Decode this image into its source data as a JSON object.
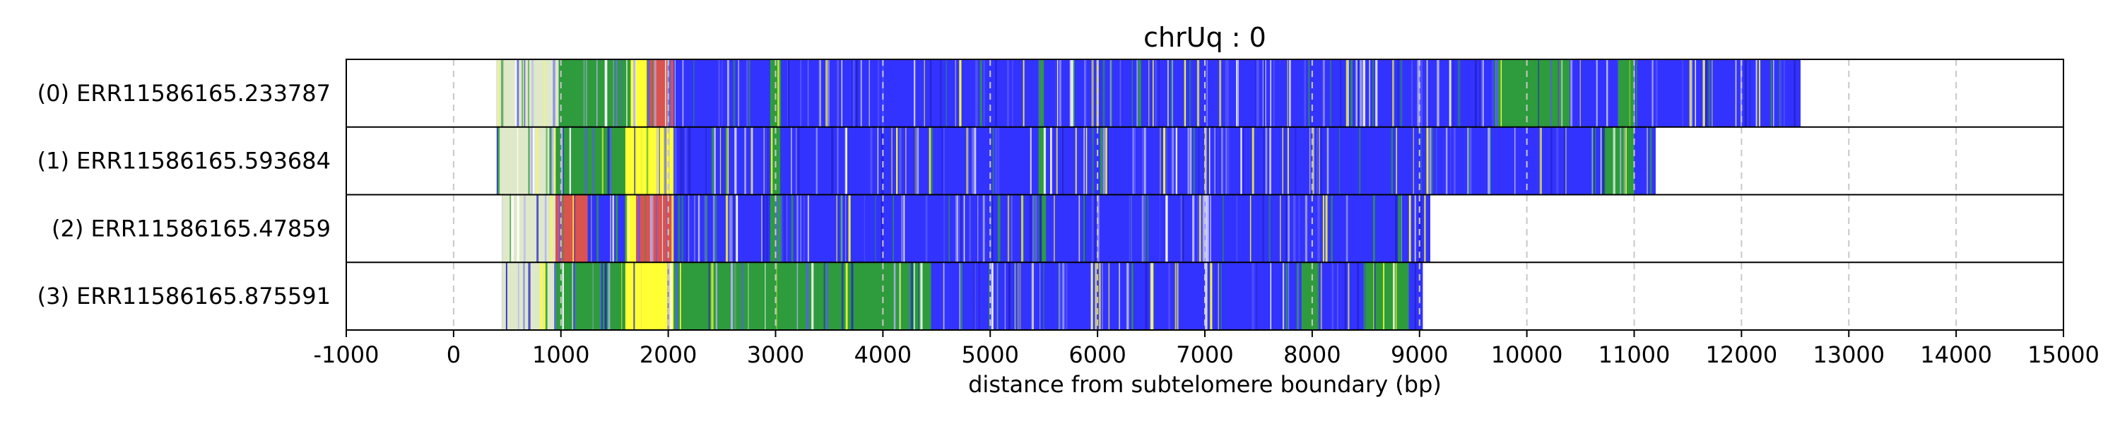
{
  "chart_data": {
    "type": "bar",
    "title": "chrUq : 0",
    "xlabel": "distance from subtelomere boundary (bp)",
    "ylabel": "",
    "xlim": [
      -1000,
      15000
    ],
    "xticks": [
      -1000,
      0,
      1000,
      2000,
      3000,
      4000,
      5000,
      6000,
      7000,
      8000,
      9000,
      10000,
      11000,
      12000,
      13000,
      14000,
      15000
    ],
    "xtick_labels": [
      "-1000",
      "0",
      "1000",
      "2000",
      "3000",
      "4000",
      "5000",
      "6000",
      "7000",
      "8000",
      "9000",
      "10000",
      "11000",
      "12000",
      "13000",
      "14000",
      "15000"
    ],
    "grid": "vertical dashed",
    "colors": {
      "blue": "#3333ff",
      "green": "#2e9b3c",
      "yellow": "#ffff33",
      "red": "#d9534f",
      "lavender": "#b3b3f5",
      "pale": "#dfe8c8",
      "grid": "#c8c8c8"
    },
    "reads": [
      {
        "label": "(0) ERR11586165.233787",
        "start": 400,
        "end": 12550,
        "bands": [
          {
            "from": 400,
            "to": 980,
            "color": "pale"
          },
          {
            "from": 980,
            "to": 1650,
            "color": "green"
          },
          {
            "from": 1650,
            "to": 1800,
            "color": "yellow"
          },
          {
            "from": 1800,
            "to": 2050,
            "color": "red"
          },
          {
            "from": 2050,
            "to": 9700,
            "color": "blue"
          },
          {
            "from": 2950,
            "to": 3050,
            "color": "green"
          },
          {
            "from": 5450,
            "to": 5500,
            "color": "green"
          },
          {
            "from": 9700,
            "to": 10400,
            "color": "green"
          },
          {
            "from": 10400,
            "to": 12550,
            "color": "blue"
          },
          {
            "from": 10850,
            "to": 11000,
            "color": "green"
          }
        ]
      },
      {
        "label": "(1) ERR11586165.593684",
        "start": 400,
        "end": 11200,
        "bands": [
          {
            "from": 400,
            "to": 950,
            "color": "pale"
          },
          {
            "from": 950,
            "to": 1600,
            "color": "green"
          },
          {
            "from": 1600,
            "to": 1750,
            "color": "yellow"
          },
          {
            "from": 1750,
            "to": 2050,
            "color": "yellow"
          },
          {
            "from": 2050,
            "to": 10700,
            "color": "blue"
          },
          {
            "from": 2950,
            "to": 3050,
            "color": "green"
          },
          {
            "from": 5450,
            "to": 5520,
            "color": "green"
          },
          {
            "from": 10700,
            "to": 11000,
            "color": "green"
          },
          {
            "from": 11000,
            "to": 11200,
            "color": "blue"
          }
        ]
      },
      {
        "label": "(2) ERR11586165.47859",
        "start": 450,
        "end": 9100,
        "bands": [
          {
            "from": 450,
            "to": 950,
            "color": "pale"
          },
          {
            "from": 950,
            "to": 1250,
            "color": "red"
          },
          {
            "from": 1250,
            "to": 1600,
            "color": "blue"
          },
          {
            "from": 1600,
            "to": 1700,
            "color": "yellow"
          },
          {
            "from": 1700,
            "to": 2050,
            "color": "red"
          },
          {
            "from": 2050,
            "to": 9100,
            "color": "blue"
          },
          {
            "from": 2950,
            "to": 3050,
            "color": "green"
          },
          {
            "from": 5450,
            "to": 5520,
            "color": "green"
          }
        ]
      },
      {
        "label": "(3) ERR11586165.875591",
        "start": 450,
        "end": 9030,
        "bands": [
          {
            "from": 450,
            "to": 950,
            "color": "pale"
          },
          {
            "from": 950,
            "to": 1600,
            "color": "green"
          },
          {
            "from": 1600,
            "to": 1750,
            "color": "yellow"
          },
          {
            "from": 1750,
            "to": 2050,
            "color": "yellow"
          },
          {
            "from": 2050,
            "to": 4450,
            "color": "green"
          },
          {
            "from": 4450,
            "to": 9030,
            "color": "blue"
          },
          {
            "from": 7900,
            "to": 8050,
            "color": "green"
          },
          {
            "from": 8500,
            "to": 8900,
            "color": "green"
          }
        ]
      }
    ]
  }
}
